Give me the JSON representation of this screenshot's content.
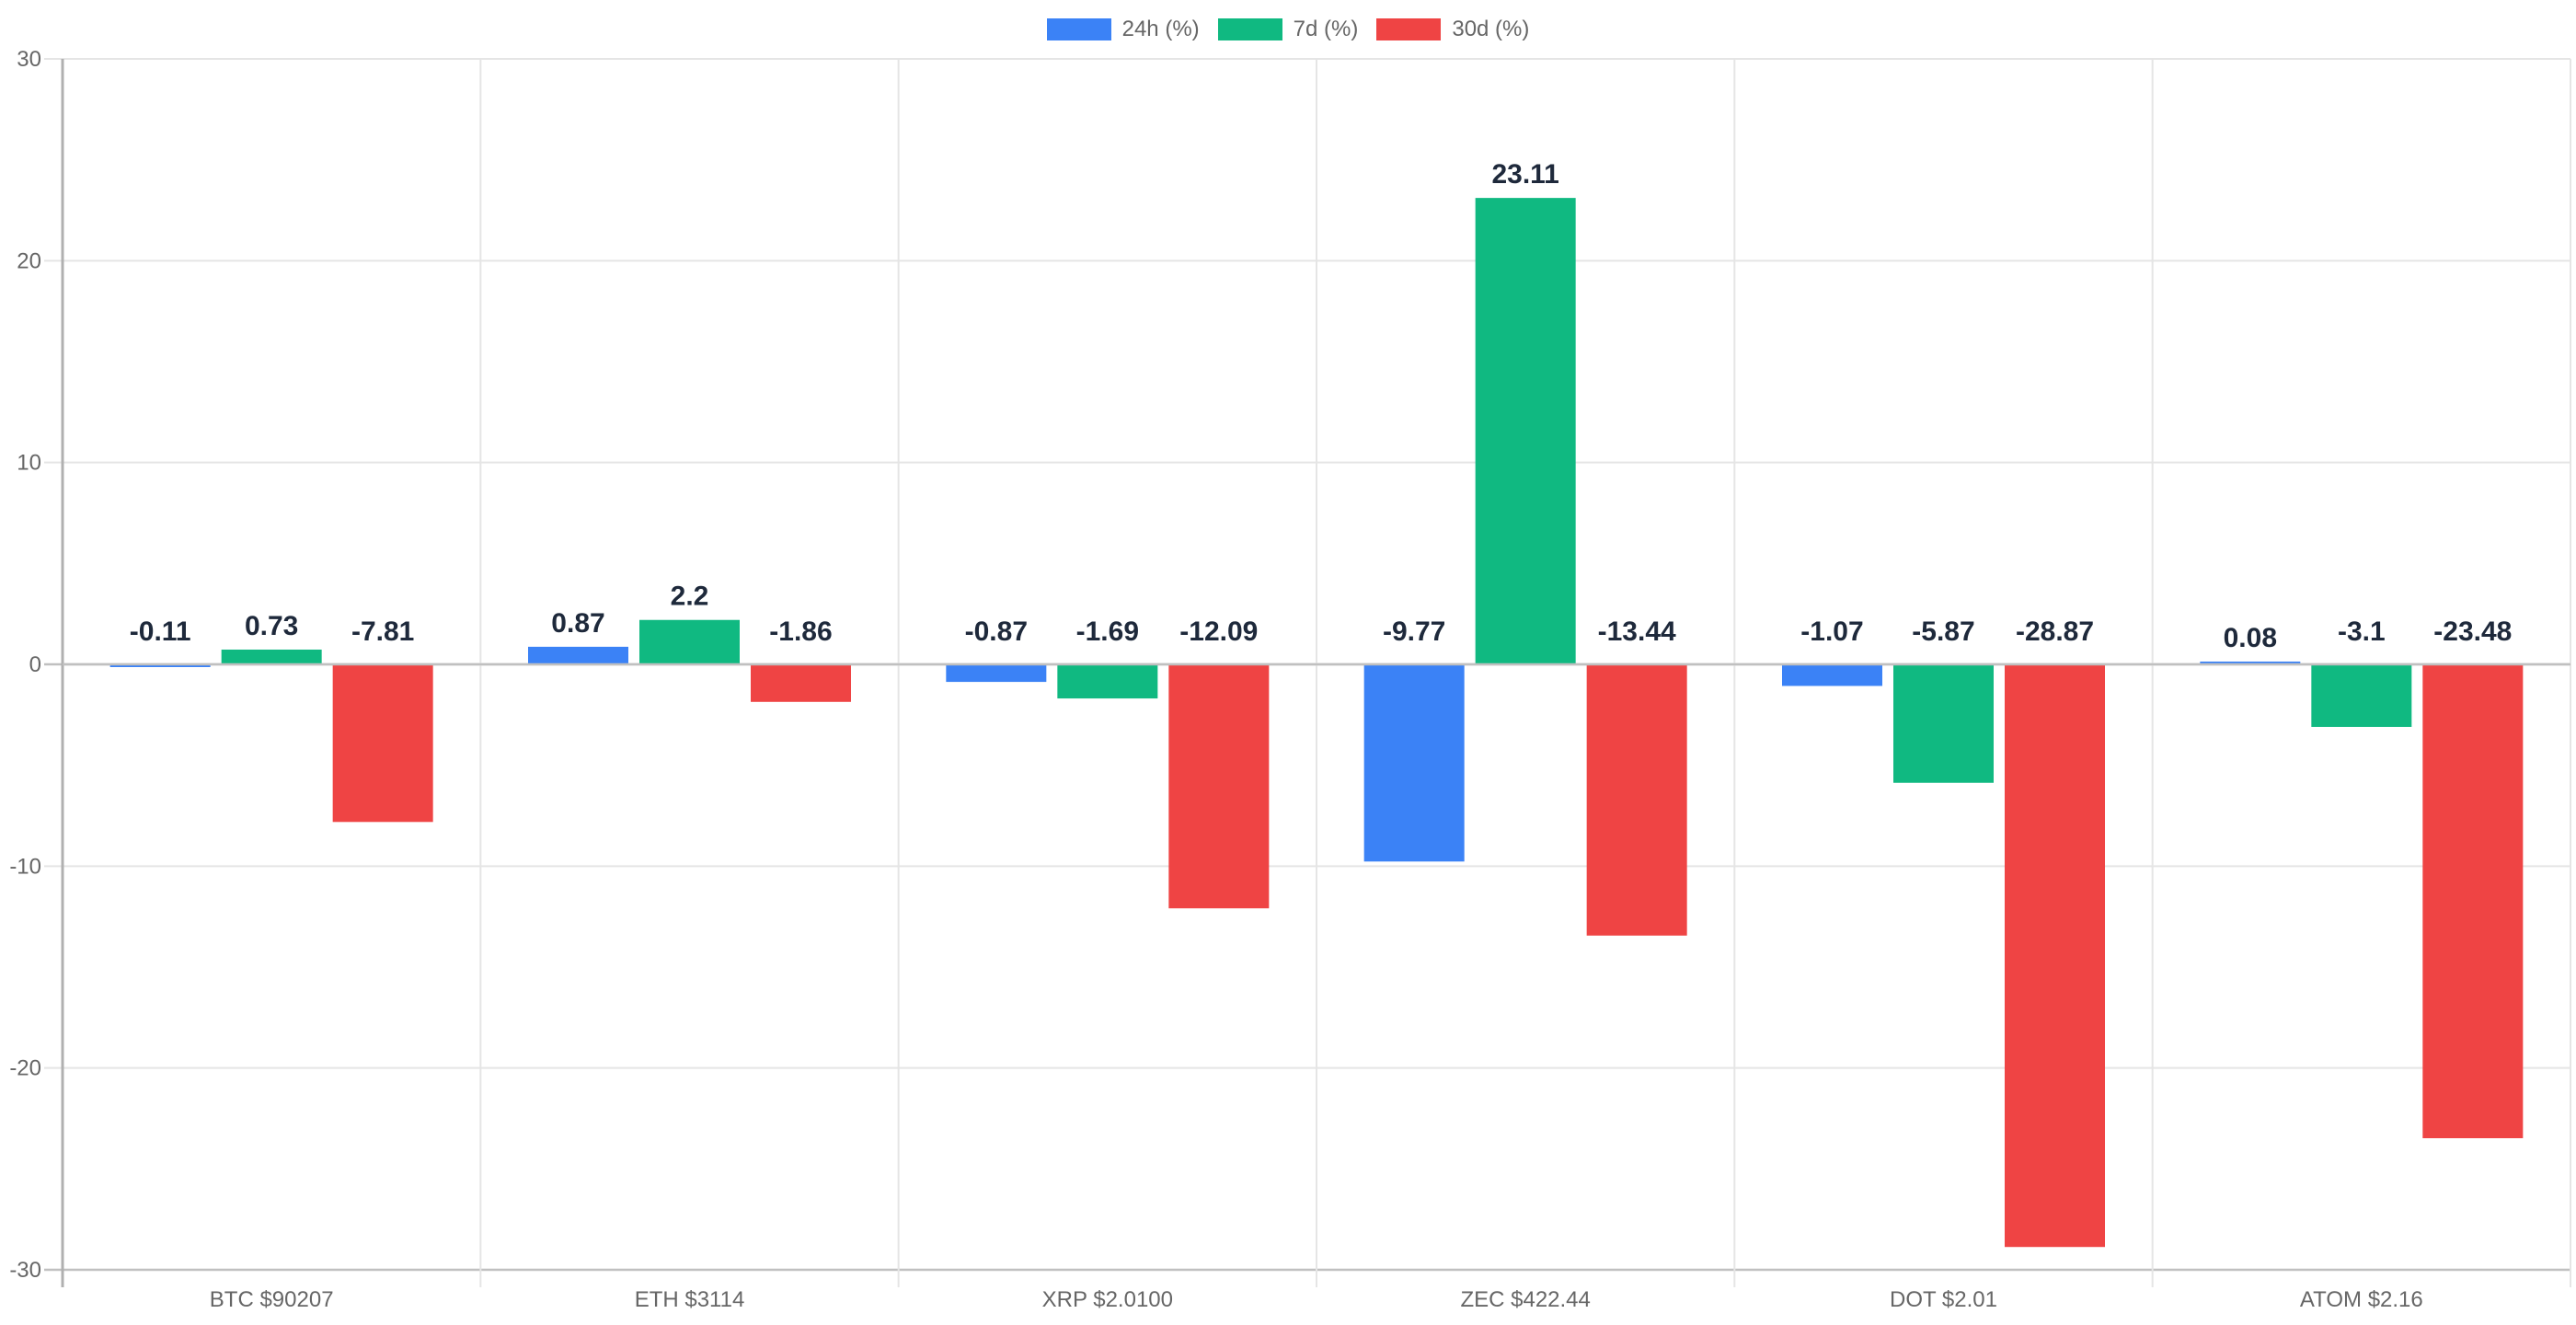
{
  "legend": {
    "items": [
      {
        "label": "24h (%)",
        "color": "#3b82f6"
      },
      {
        "label": "7d (%)",
        "color": "#10b981"
      },
      {
        "label": "30d (%)",
        "color": "#ef4444"
      }
    ]
  },
  "colors": {
    "grid": "#e5e5e5",
    "axis": "#b0b0b0",
    "zero_line": "#c0c0c0",
    "tick_text": "#666666",
    "data_label": "#1e293b"
  },
  "chart_data": {
    "type": "bar",
    "title": "",
    "xlabel": "",
    "ylabel": "",
    "ylim": [
      -30,
      30
    ],
    "yticks": [
      30,
      20,
      10,
      0,
      -10,
      -20,
      -30
    ],
    "grid": true,
    "legend_position": "top",
    "categories": [
      "BTC  $90207",
      "ETH  $3114",
      "XRP  $2.0100",
      "ZEC  $422.44",
      "DOT  $2.01",
      "ATOM $2.16"
    ],
    "series": [
      {
        "name": "24h (%)",
        "color": "#3b82f6",
        "values": [
          -0.11,
          0.87,
          -0.87,
          -9.77,
          -1.07,
          0.08
        ]
      },
      {
        "name": "7d (%)",
        "color": "#10b981",
        "values": [
          0.73,
          2.2,
          -1.69,
          23.11,
          -5.87,
          -3.1
        ]
      },
      {
        "name": "30d (%)",
        "color": "#ef4444",
        "values": [
          -7.81,
          -1.86,
          -12.09,
          -13.44,
          -28.87,
          -23.48
        ]
      }
    ],
    "data_labels": true
  }
}
